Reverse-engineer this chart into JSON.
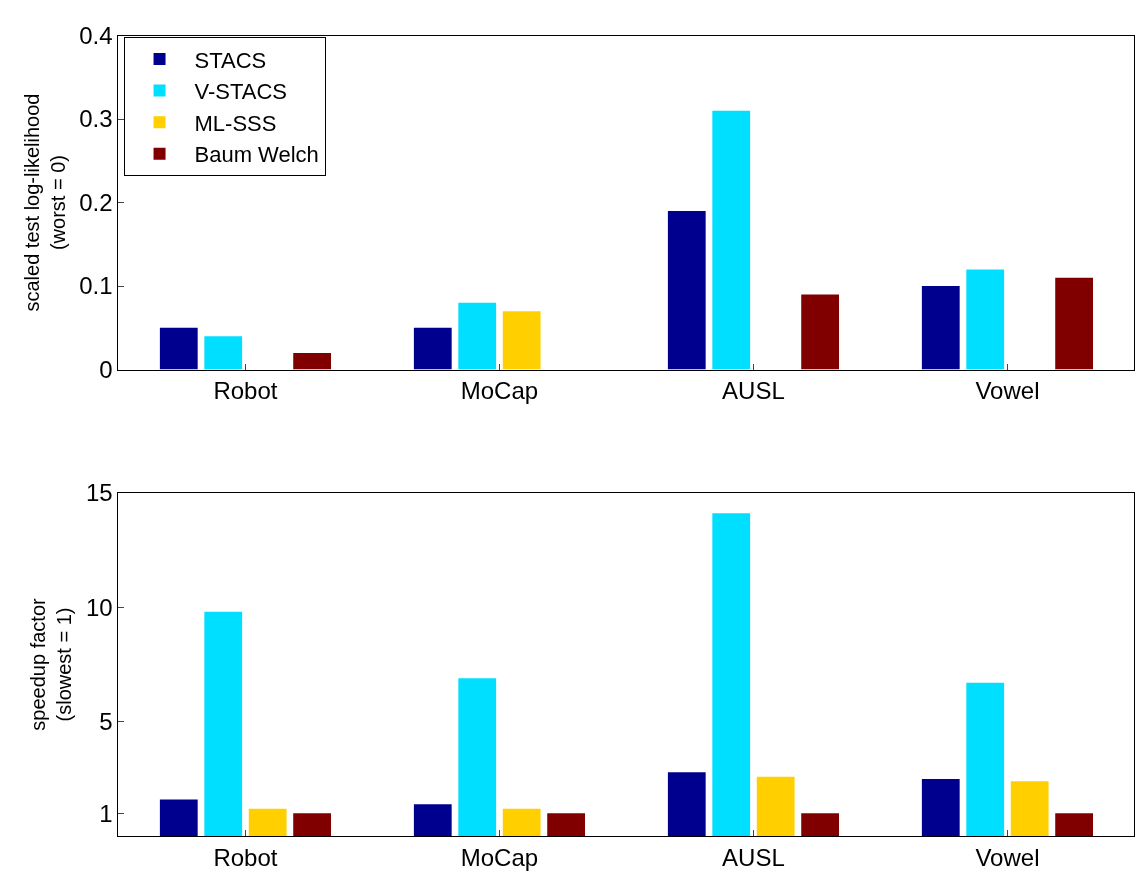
{
  "chart_data": [
    {
      "type": "bar",
      "ylabel": "scaled test log-likelihood\n(worst = 0)",
      "categories": [
        "Robot",
        "MoCap",
        "AUSL",
        "Vowel"
      ],
      "series": [
        {
          "name": "STACS",
          "color": "#00008f",
          "values": [
            0.05,
            0.05,
            0.19,
            0.1
          ]
        },
        {
          "name": "V-STACS",
          "color": "#00dfff",
          "values": [
            0.04,
            0.08,
            0.31,
            0.12
          ]
        },
        {
          "name": "ML-SSS",
          "color": "#ffcf00",
          "values": [
            0,
            0.07,
            0,
            0
          ]
        },
        {
          "name": "Baum Welch",
          "color": "#800000",
          "values": [
            0.02,
            0,
            0.09,
            0.11
          ]
        }
      ],
      "ylim": [
        0,
        0.4
      ],
      "yticks": [
        0,
        0.1,
        0.2,
        0.3,
        0.4
      ],
      "legend": "top left"
    },
    {
      "type": "bar",
      "ylabel": "speedup factor\n(slowest = 1)",
      "categories": [
        "Robot",
        "MoCap",
        "AUSL",
        "Vowel"
      ],
      "series": [
        {
          "color": "#00008f",
          "values": [
            1.6,
            1.4,
            2.8,
            2.5
          ]
        },
        {
          "color": "#00dfff",
          "values": [
            9.8,
            6.9,
            14.1,
            6.7
          ]
        },
        {
          "color": "#ffcf00",
          "values": [
            1.2,
            1.2,
            2.6,
            2.4
          ]
        },
        {
          "color": "#800000",
          "values": [
            1.0,
            1.0,
            1.0,
            1.0
          ]
        }
      ],
      "ylim": [
        0,
        15
      ],
      "yticks": [
        1,
        5,
        10,
        15
      ]
    }
  ]
}
